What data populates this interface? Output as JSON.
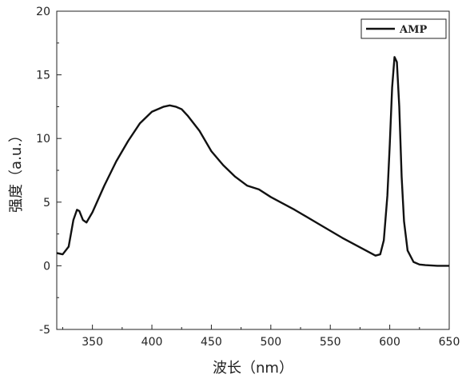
{
  "chart_data": {
    "type": "line",
    "title": "",
    "xlabel": "波长（nm）",
    "ylabel": "强度（a.u.）",
    "xlim": [
      320,
      650
    ],
    "ylim": [
      -5,
      20
    ],
    "xticks": [
      350,
      400,
      450,
      500,
      550,
      600,
      650
    ],
    "yticks": [
      -5,
      0,
      5,
      10,
      15,
      20
    ],
    "grid": false,
    "legend": {
      "position": "top-right",
      "entries": [
        "AMP"
      ]
    },
    "series": [
      {
        "name": "AMP",
        "color": "#111111",
        "x": [
          320,
          325,
          330,
          334,
          337,
          339,
          342,
          345,
          350,
          360,
          370,
          380,
          390,
          400,
          410,
          415,
          420,
          425,
          430,
          440,
          450,
          460,
          470,
          480,
          490,
          500,
          520,
          540,
          560,
          580,
          588,
          592,
          595,
          598,
          600,
          602,
          604,
          606,
          608,
          610,
          612,
          615,
          620,
          625,
          630,
          640,
          650
        ],
        "y": [
          1.0,
          0.9,
          1.5,
          3.6,
          4.4,
          4.3,
          3.6,
          3.4,
          4.2,
          6.3,
          8.2,
          9.8,
          11.2,
          12.1,
          12.5,
          12.6,
          12.5,
          12.3,
          11.8,
          10.6,
          9.0,
          7.9,
          7.0,
          6.3,
          6.0,
          5.4,
          4.4,
          3.3,
          2.2,
          1.2,
          0.8,
          0.9,
          2.0,
          5.5,
          9.5,
          14.0,
          16.4,
          16.0,
          12.5,
          7.0,
          3.5,
          1.2,
          0.3,
          0.1,
          0.05,
          0.0,
          0.0
        ]
      }
    ]
  }
}
